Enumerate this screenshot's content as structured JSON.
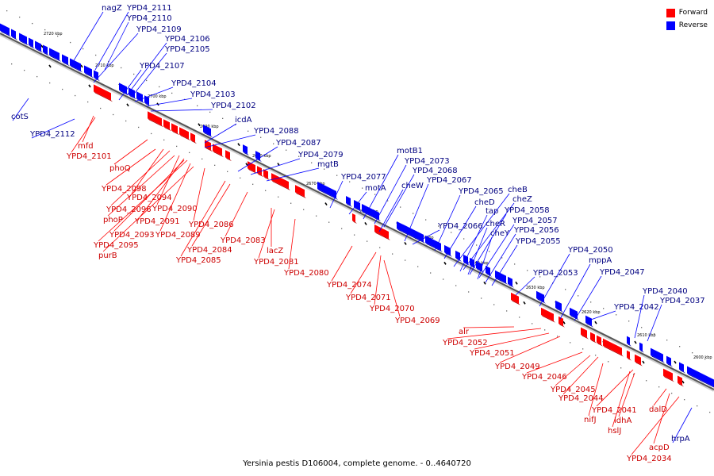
{
  "caption": "Yersinia pestis D106004, complete genome. - 0..4640720",
  "legend": {
    "forward": {
      "label": "Forward",
      "color": "#ff0000"
    },
    "reverse": {
      "label": "Reverse",
      "color": "#0000ff"
    }
  },
  "backbone_ticks": [
    "2720 kbp",
    "2710 kbp",
    "2700 kbp",
    "2690 kbp",
    "2680 kbp",
    "2670 kbp",
    "2660 kbp",
    "2650 kbp",
    "2640 kbp",
    "2630 kbp",
    "2620 kbp",
    "2610 kbp",
    "2600 kbp"
  ],
  "reverse_labels": [
    "nagZ",
    "YPD4_2111",
    "YPD4_2110",
    "YPD4_2109",
    "YPD4_2106",
    "YPD4_2105",
    "YPD4_2107",
    "YPD4_2104",
    "YPD4_2103",
    "YPD4_2102",
    "icdA",
    "cotS",
    "YPD4_2112",
    "YPD4_2088",
    "YPD4_2087",
    "YPD4_2079",
    "mgtB",
    "motB1",
    "YPD4_2073",
    "YPD4_2068",
    "YPD4_2077",
    "motA",
    "cheW",
    "YPD4_2067",
    "cheB",
    "YPD4_2065",
    "cheD",
    "cheZ",
    "tap",
    "YPD4_2058",
    "cheR",
    "YPD4_2057",
    "YPD4_2066",
    "cheY",
    "YPD4_2056",
    "YPD4_2055",
    "YPD4_2050",
    "mppA",
    "YPD4_2053",
    "YPD4_2047",
    "YPD4_2042",
    "YPD4_2040",
    "YPD4_2037",
    "hrpA"
  ],
  "forward_labels": [
    "mfd",
    "YPD4_2101",
    "phoQ",
    "YPD4_2098",
    "YPD4_2094",
    "YPD4_2096",
    "YPD4_2090",
    "phoP",
    "YPD4_2091",
    "YPD4_2086",
    "YPD4_2093",
    "YPD4_2089",
    "YPD4_2095",
    "purB",
    "YPD4_2083",
    "YPD4_2084",
    "YPD4_2085",
    "lacZ",
    "YPD4_2081",
    "YPD4_2080",
    "YPD4_2074",
    "YPD4_2071",
    "YPD4_2070",
    "YPD4_2069",
    "alr",
    "YPD4_2052",
    "YPD4_2051",
    "YPD4_2049",
    "YPD4_2046",
    "YPD4_2045",
    "YPD4_2044",
    "YPD4_2041",
    "nifJ",
    "ldhA",
    "hslJ",
    "dalD",
    "acpD",
    "YPD4_2034"
  ]
}
